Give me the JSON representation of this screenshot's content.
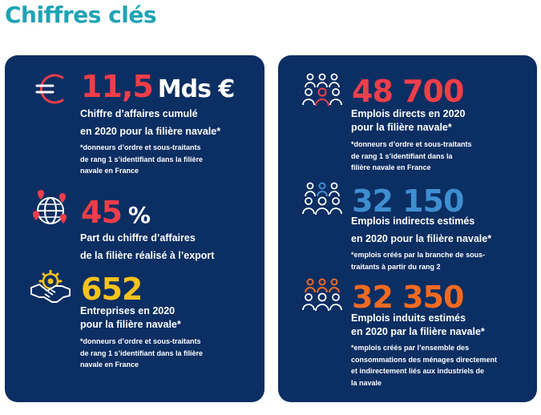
{
  "title": "Chiffres clés",
  "colors": {
    "red": "#ef3e4a",
    "orange": "#f26a21",
    "yellow": "#f8c21d",
    "blue": "#3e8ed0",
    "panel": "#0b2e63",
    "title": "#1fa3b5"
  },
  "left": {
    "revenue": {
      "icon": "euro-icon",
      "value": "11,5",
      "unit": "Mds €",
      "label_lines": [
        "Chiffre d’affaires cumulé",
        "en 2020 pour la filière navale*"
      ],
      "note_lines": [
        "*donneurs d’ordre et sous-traitants",
        "de rang 1 s’identifiant dans la filière",
        "navale en France"
      ]
    },
    "export": {
      "icon": "globe-pins-icon",
      "value": "45",
      "unit": "%",
      "label_lines": [
        "Part du chiffre d’affaires",
        "de la filière réalisé à l’export"
      ]
    },
    "companies": {
      "icon": "handshake-gear-icon",
      "value": "652",
      "label_lines": [
        "Entreprises en 2020",
        "pour la filière navale*"
      ],
      "note_lines": [
        "*donneurs d’ordre et sous-traitants",
        "de rang 1 s’identifiant dans la filière",
        "navale en France"
      ]
    }
  },
  "right": {
    "direct": {
      "icon": "people-group-icon",
      "value": "48 700",
      "label_lines": [
        "Emplois directs en 2020",
        "pour la filière navale*"
      ],
      "note_lines": [
        "*donneurs d’ordre et sous-traitants",
        "de rang 1 s’identifiant dans la",
        "filière navale en France"
      ]
    },
    "indirect": {
      "icon": "people-group-icon",
      "value": "32 150",
      "label_lines": [
        "Emplois indirects estimés",
        "en 2020 pour la filière navale*"
      ],
      "note_lines": [
        "*emplois créés par la branche de sous-",
        "traitants à partir du rang 2"
      ]
    },
    "induced": {
      "icon": "people-group-icon",
      "value": "32 350",
      "label_lines": [
        "Emplois induits estimés",
        "en 2020 par la filière navale*"
      ],
      "note_lines": [
        "*emplois créés par l’ensemble des",
        "consommations des ménages directement",
        "et indirectement liés aux industriels de",
        "la navale"
      ]
    }
  }
}
